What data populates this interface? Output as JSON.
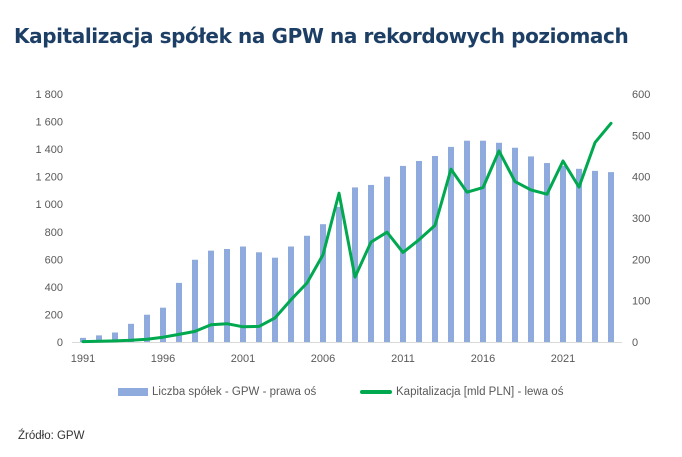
{
  "title": "Kapitalizacja spółek na GPW na rekordowych poziomach",
  "source": "Źródło: GPW",
  "chart_data": {
    "type": "bar+line",
    "title": "Kapitalizacja spółek na GPW na rekordowych poziomach",
    "years": [
      1991,
      1992,
      1993,
      1994,
      1995,
      1996,
      1997,
      1998,
      1999,
      2000,
      2001,
      2002,
      2003,
      2004,
      2005,
      2006,
      2007,
      2008,
      2009,
      2010,
      2011,
      2012,
      2013,
      2014,
      2015,
      2016,
      2017,
      2018,
      2019,
      2020,
      2021,
      2022,
      2023,
      2024
    ],
    "x_tick_labels": [
      "1991",
      "1996",
      "2001",
      "2006",
      "2011",
      "2016",
      "2021"
    ],
    "left_axis": {
      "ylim": [
        0,
        1800
      ],
      "ticks": [
        "0",
        "200",
        "400",
        "600",
        "800",
        "1 000",
        "1 200",
        "1 400",
        "1 600",
        "1 800"
      ]
    },
    "right_axis": {
      "ylim": [
        0,
        600
      ],
      "ticks": [
        "0",
        "100",
        "200",
        "300",
        "400",
        "500",
        "600"
      ]
    },
    "grid": false,
    "legend_position": "bottom",
    "series": [
      {
        "name": "Liczba spółek - GPW - prawa oś",
        "type": "bar",
        "axis": "right",
        "color": "#8faadc",
        "values": [
          10,
          16,
          23,
          44,
          66,
          83,
          143,
          199,
          221,
          225,
          231,
          217,
          204,
          231,
          257,
          285,
          327,
          374,
          380,
          400,
          426,
          438,
          450,
          472,
          487,
          487,
          482,
          470,
          449,
          433,
          426,
          419,
          414,
          411
        ]
      },
      {
        "name": "Kapitalizacja [mld PLN] - lewa oś",
        "type": "line",
        "axis": "left",
        "color": "#00a84f",
        "values": [
          3,
          5,
          8,
          12,
          20,
          35,
          55,
          77,
          125,
          133,
          110,
          113,
          175,
          307,
          428,
          633,
          1080,
          471,
          725,
          797,
          650,
          742,
          846,
          1254,
          1087,
          1121,
          1387,
          1164,
          1104,
          1073,
          1314,
          1124,
          1447,
          1587
        ]
      }
    ]
  }
}
